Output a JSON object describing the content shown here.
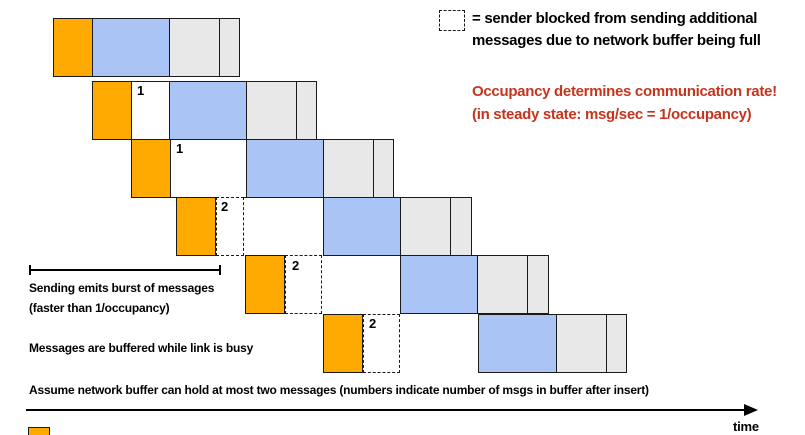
{
  "legend": {
    "line1": "= sender blocked from sending additional",
    "line2": "messages due to network buffer being full"
  },
  "highlight": {
    "line1": "Occupancy determines communication rate!",
    "line2": "(in steady state: msg/sec = 1/occupancy)"
  },
  "annotations": {
    "burst_line1": "Sending emits burst of messages",
    "burst_line2": "(faster than 1/occupancy)",
    "buffered": "Messages are buffered while link is busy",
    "assumption": "Assume network buffer can hold at most two messages (numbers indicate number of msgs in buffer after insert)"
  },
  "axis": {
    "label": "time"
  },
  "buffer_counts": {
    "row2": "1",
    "row3": "1",
    "row4": "2",
    "row5": "2",
    "row6": "2"
  },
  "colors": {
    "send_overhead": "#ffaa00",
    "network_link": "#aac4f6",
    "other_stages": "#e8e8e8",
    "highlight_text": "#c4351e"
  }
}
